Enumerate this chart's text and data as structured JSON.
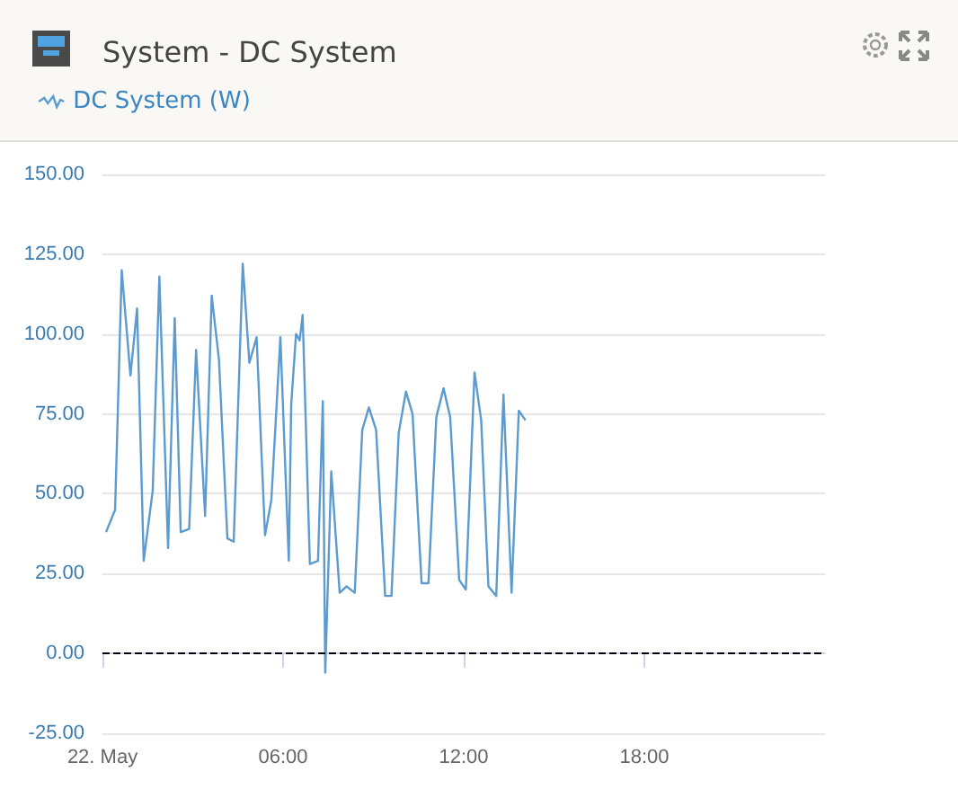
{
  "chart_data": {
    "type": "line",
    "title": "System - DC System",
    "legend": "top left",
    "grid": "y",
    "marker": "none",
    "line_style": "solid",
    "x": [
      0.12,
      0.42,
      0.64,
      0.93,
      1.15,
      1.37,
      1.67,
      1.89,
      2.18,
      2.4,
      2.6,
      2.88,
      3.11,
      3.41,
      3.63,
      3.87,
      4.15,
      4.36,
      4.66,
      4.88,
      5.12,
      5.4,
      5.61,
      5.91,
      6.19,
      6.27,
      6.43,
      6.55,
      6.65,
      6.89,
      7.16,
      7.32,
      7.4,
      7.6,
      7.88,
      8.11,
      8.38,
      8.63,
      8.85,
      9.09,
      9.39,
      9.6,
      9.84,
      10.08,
      10.3,
      10.6,
      10.83,
      11.09,
      11.33,
      11.55,
      11.85,
      12.07,
      12.36,
      12.58,
      12.82,
      13.08,
      13.32,
      13.59,
      13.83,
      14.05
    ],
    "series": [
      {
        "name": "DC System (W)",
        "color": "#5b9bd0",
        "values": [
          38,
          45,
          120,
          87,
          108,
          29,
          51,
          118,
          33,
          105,
          38,
          39,
          95,
          43,
          112,
          92,
          36,
          35,
          122,
          91,
          99,
          37,
          48,
          99,
          29,
          78,
          100,
          98,
          106,
          28,
          29,
          79,
          -6,
          57,
          19,
          21,
          19,
          70,
          77,
          70,
          18,
          18,
          69,
          82,
          75,
          22,
          22,
          74,
          83,
          74,
          23,
          20,
          88,
          73,
          21,
          18,
          81,
          19,
          76,
          73
        ]
      }
    ],
    "xlim": [
      0,
      24
    ],
    "xticks": [
      {
        "value": 0,
        "label": "22. May"
      },
      {
        "value": 6,
        "label": "06:00"
      },
      {
        "value": 12,
        "label": "12:00"
      },
      {
        "value": 18,
        "label": "18:00"
      }
    ],
    "ylim": [
      -25,
      150
    ],
    "yticks": [
      {
        "value": -25,
        "label": "-25.00"
      },
      {
        "value": 0,
        "label": "0.00"
      },
      {
        "value": 25,
        "label": "25.00"
      },
      {
        "value": 50,
        "label": "50.00"
      },
      {
        "value": 75,
        "label": "75.00"
      },
      {
        "value": 100,
        "label": "100.00"
      },
      {
        "value": 125,
        "label": "125.00"
      },
      {
        "value": 150,
        "label": "150.00"
      }
    ],
    "ref_lines": [
      {
        "axis": "y",
        "value": 0,
        "color": "#000000",
        "line_style": "dashed"
      }
    ]
  }
}
